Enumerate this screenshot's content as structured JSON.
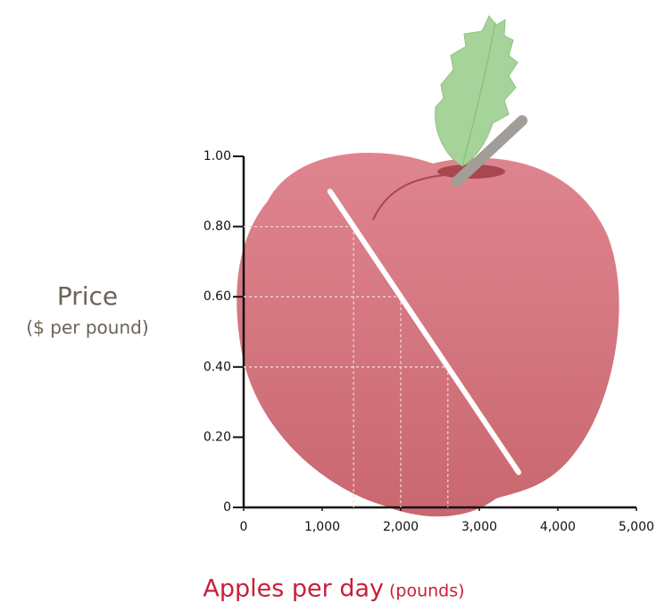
{
  "chart_data": {
    "type": "line",
    "y_title": "Price",
    "y_subtitle": "($ per pound)",
    "x_title": "Apples per day",
    "x_subtitle": "(pounds)",
    "x": [
      1100,
      3500
    ],
    "series": [
      {
        "color": "#ffffff",
        "values": [
          0.9,
          0.1
        ]
      }
    ],
    "guide_points": {
      "x": [
        1400,
        2000,
        2600
      ],
      "y": [
        0.8,
        0.6,
        0.4
      ]
    },
    "xlim": [
      0,
      5000
    ],
    "xticks": [
      0,
      {
        "value": 1000,
        "label": "1,000"
      },
      {
        "value": 2000,
        "label": "2,000"
      },
      {
        "value": 3000,
        "label": "3,000"
      },
      {
        "value": 4000,
        "label": "4,000"
      },
      {
        "value": 5000,
        "label": "5,000"
      }
    ],
    "ylim": [
      0,
      1
    ],
    "yticks": [
      0,
      {
        "value": 0.2,
        "label": "0.20"
      },
      {
        "value": 0.4,
        "label": "0.40"
      },
      {
        "value": 0.6,
        "label": "0.60"
      },
      {
        "value": 0.8,
        "label": "0.80"
      },
      {
        "value": 1,
        "label": "1.00"
      }
    ]
  }
}
